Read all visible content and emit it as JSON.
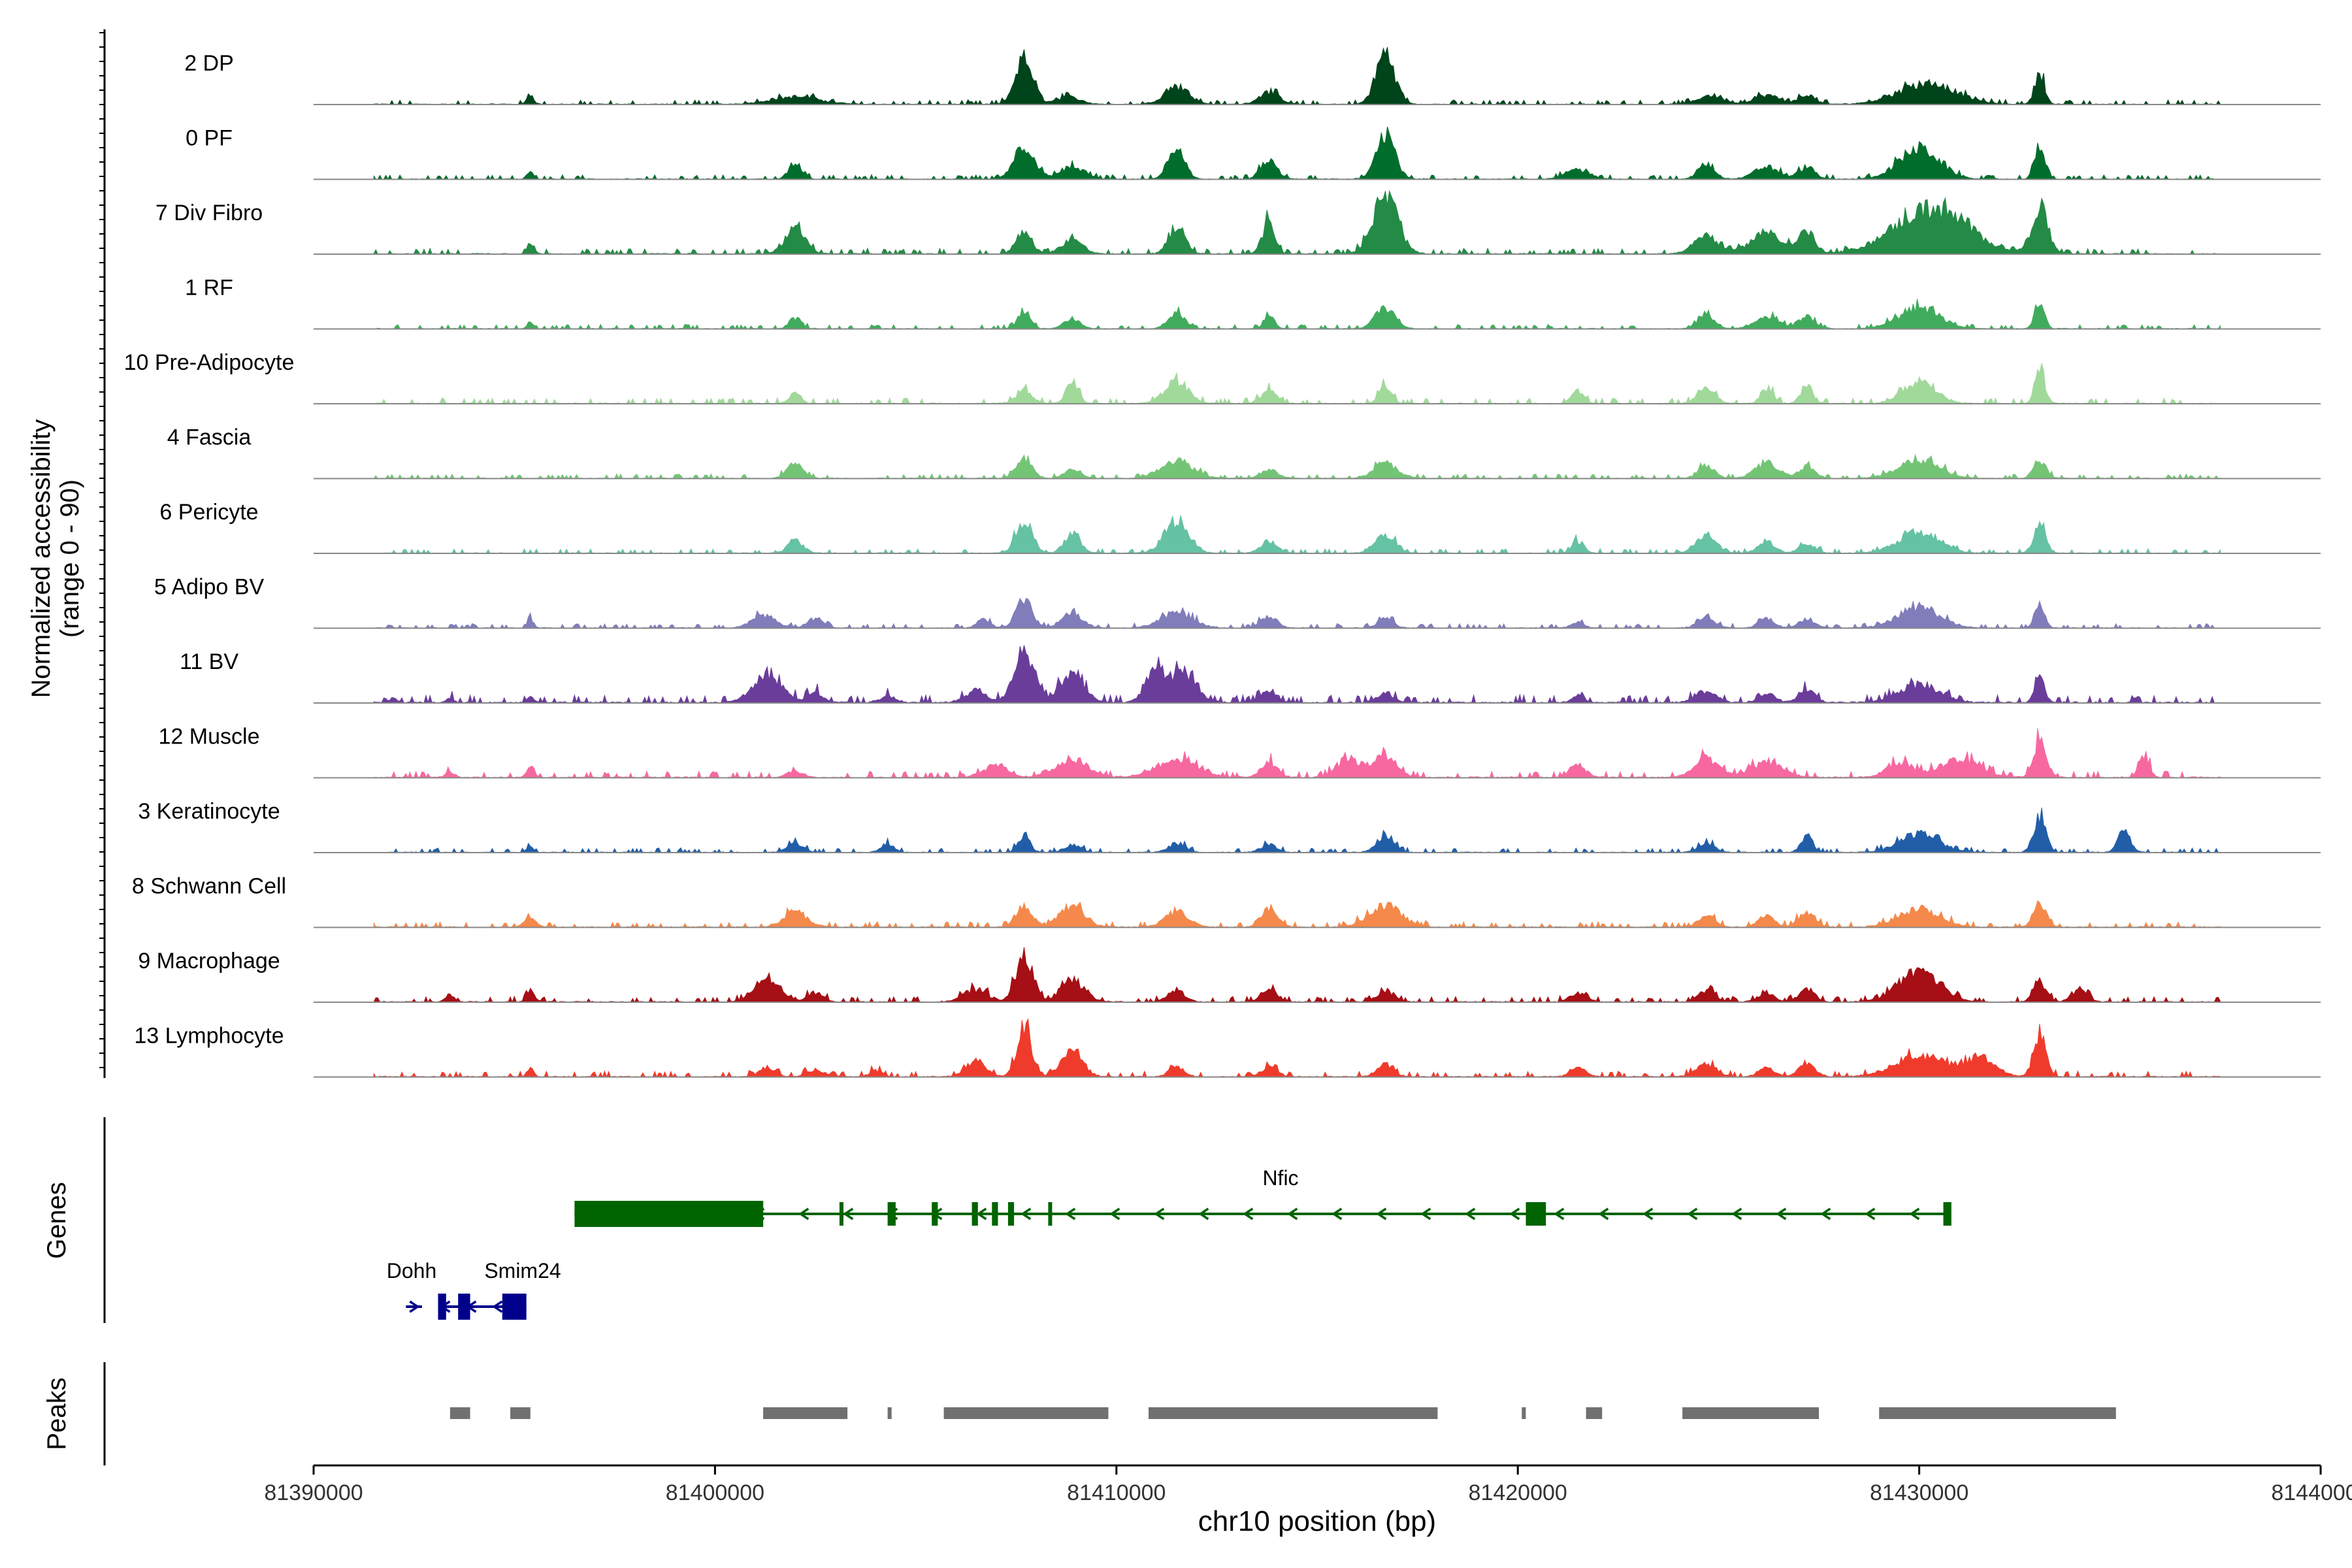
{
  "chart_data": {
    "type": "area",
    "title": "",
    "ylabel_line1": "Normalized accessibility",
    "ylabel_line2": "(range 0 - 90)",
    "xlabel": "chr10 position (bp)",
    "xlim": [
      81390000,
      81440000
    ],
    "xticks": [
      81390000,
      81400000,
      81410000,
      81420000,
      81430000,
      81440000
    ],
    "xtick_labels": [
      "81390000",
      "81400000",
      "81410000",
      "81420000",
      "81430000",
      "81440000"
    ],
    "genes_label": "Genes",
    "peaks_label": "Peaks",
    "tracks": [
      {
        "name": "2 DP",
        "color": "#00441b",
        "noise": 0.04,
        "peaks": [
          [
            81395400,
            0.18,
            80
          ],
          [
            81402000,
            0.12,
            600
          ],
          [
            81407700,
            0.75,
            220
          ],
          [
            81408800,
            0.12,
            300
          ],
          [
            81411500,
            0.3,
            300
          ],
          [
            81413800,
            0.2,
            250
          ],
          [
            81416700,
            0.85,
            230
          ],
          [
            81424800,
            0.15,
            300
          ],
          [
            81426200,
            0.15,
            300
          ],
          [
            81427200,
            0.15,
            200
          ],
          [
            81430200,
            0.35,
            700
          ],
          [
            81433000,
            0.55,
            120
          ]
        ]
      },
      {
        "name": "0 PF",
        "color": "#006d2c",
        "noise": 0.04,
        "peaks": [
          [
            81395400,
            0.15,
            80
          ],
          [
            81402000,
            0.3,
            150
          ],
          [
            81407700,
            0.55,
            250
          ],
          [
            81408900,
            0.2,
            300
          ],
          [
            81411500,
            0.5,
            200
          ],
          [
            81413800,
            0.3,
            200
          ],
          [
            81416700,
            0.8,
            230
          ],
          [
            81421500,
            0.15,
            300
          ],
          [
            81424700,
            0.25,
            200
          ],
          [
            81426200,
            0.2,
            300
          ],
          [
            81427200,
            0.2,
            200
          ],
          [
            81430000,
            0.5,
            500
          ],
          [
            81433000,
            0.6,
            120
          ]
        ]
      },
      {
        "name": "7 Div Fibro",
        "color": "#238b45",
        "noise": 0.05,
        "peaks": [
          [
            81395400,
            0.2,
            80
          ],
          [
            81402000,
            0.45,
            250
          ],
          [
            81407700,
            0.35,
            200
          ],
          [
            81408900,
            0.25,
            250
          ],
          [
            81411500,
            0.45,
            200
          ],
          [
            81413800,
            0.55,
            150
          ],
          [
            81416700,
            1.0,
            300
          ],
          [
            81424700,
            0.3,
            300
          ],
          [
            81426200,
            0.35,
            400
          ],
          [
            81427200,
            0.35,
            200
          ],
          [
            81430300,
            0.75,
            900
          ],
          [
            81433000,
            0.75,
            200
          ]
        ]
      },
      {
        "name": "1 RF",
        "color": "#41ab5d",
        "noise": 0.04,
        "peaks": [
          [
            81395400,
            0.12,
            80
          ],
          [
            81402000,
            0.18,
            150
          ],
          [
            81407700,
            0.3,
            150
          ],
          [
            81408900,
            0.15,
            200
          ],
          [
            81411500,
            0.25,
            200
          ],
          [
            81413800,
            0.25,
            120
          ],
          [
            81416700,
            0.35,
            250
          ],
          [
            81424700,
            0.25,
            200
          ],
          [
            81426200,
            0.2,
            300
          ],
          [
            81427200,
            0.2,
            200
          ],
          [
            81430000,
            0.35,
            500
          ],
          [
            81433000,
            0.45,
            120
          ]
        ]
      },
      {
        "name": "10 Pre-Adipocyte",
        "color": "#a1d99b",
        "noise": 0.05,
        "peaks": [
          [
            81402000,
            0.15,
            150
          ],
          [
            81407700,
            0.2,
            200
          ],
          [
            81408900,
            0.35,
            150
          ],
          [
            81411500,
            0.35,
            300
          ],
          [
            81413800,
            0.2,
            200
          ],
          [
            81416700,
            0.3,
            150
          ],
          [
            81421500,
            0.2,
            150
          ],
          [
            81424700,
            0.3,
            200
          ],
          [
            81426200,
            0.25,
            150
          ],
          [
            81427200,
            0.3,
            150
          ],
          [
            81430000,
            0.35,
            400
          ],
          [
            81433000,
            0.6,
            120
          ]
        ]
      },
      {
        "name": "4 Fascia",
        "color": "#74c476",
        "noise": 0.04,
        "peaks": [
          [
            81402000,
            0.25,
            200
          ],
          [
            81407700,
            0.3,
            200
          ],
          [
            81408900,
            0.15,
            200
          ],
          [
            81411500,
            0.3,
            400
          ],
          [
            81413800,
            0.15,
            200
          ],
          [
            81416700,
            0.25,
            300
          ],
          [
            81424700,
            0.2,
            200
          ],
          [
            81426200,
            0.25,
            300
          ],
          [
            81427200,
            0.2,
            200
          ],
          [
            81430000,
            0.3,
            500
          ],
          [
            81433000,
            0.3,
            150
          ]
        ]
      },
      {
        "name": "6 Pericyte",
        "color": "#66c2a4",
        "noise": 0.04,
        "peaks": [
          [
            81402000,
            0.2,
            200
          ],
          [
            81407700,
            0.55,
            200
          ],
          [
            81408900,
            0.3,
            200
          ],
          [
            81411500,
            0.55,
            300
          ],
          [
            81413800,
            0.2,
            200
          ],
          [
            81416700,
            0.3,
            250
          ],
          [
            81421500,
            0.2,
            150
          ],
          [
            81424700,
            0.3,
            250
          ],
          [
            81426200,
            0.2,
            200
          ],
          [
            81427200,
            0.15,
            200
          ],
          [
            81430000,
            0.35,
            500
          ],
          [
            81433000,
            0.45,
            150
          ]
        ]
      },
      {
        "name": "5 Adipo BV",
        "color": "#807dba",
        "noise": 0.04,
        "peaks": [
          [
            81395400,
            0.15,
            80
          ],
          [
            81401200,
            0.2,
            300
          ],
          [
            81402500,
            0.15,
            200
          ],
          [
            81406700,
            0.15,
            150
          ],
          [
            81407700,
            0.45,
            200
          ],
          [
            81408900,
            0.25,
            250
          ],
          [
            81411500,
            0.25,
            400
          ],
          [
            81413800,
            0.2,
            200
          ],
          [
            81416700,
            0.15,
            200
          ],
          [
            81421500,
            0.1,
            150
          ],
          [
            81424700,
            0.2,
            200
          ],
          [
            81426200,
            0.15,
            200
          ],
          [
            81427200,
            0.15,
            200
          ],
          [
            81430000,
            0.35,
            500
          ],
          [
            81433000,
            0.4,
            120
          ]
        ]
      },
      {
        "name": "11 BV",
        "color": "#6a3d9a",
        "noise": 0.07,
        "peaks": [
          [
            81392000,
            0.08,
            80
          ],
          [
            81393400,
            0.08,
            80
          ],
          [
            81395400,
            0.1,
            80
          ],
          [
            81401300,
            0.5,
            350
          ],
          [
            81402500,
            0.15,
            200
          ],
          [
            81404300,
            0.1,
            200
          ],
          [
            81406500,
            0.2,
            250
          ],
          [
            81407700,
            0.9,
            250
          ],
          [
            81408900,
            0.45,
            300
          ],
          [
            81411000,
            0.55,
            250
          ],
          [
            81411700,
            0.5,
            300
          ],
          [
            81413800,
            0.2,
            200
          ],
          [
            81416700,
            0.15,
            200
          ],
          [
            81421500,
            0.1,
            150
          ],
          [
            81424700,
            0.2,
            250
          ],
          [
            81426200,
            0.15,
            200
          ],
          [
            81427200,
            0.2,
            200
          ],
          [
            81430000,
            0.3,
            500
          ],
          [
            81433000,
            0.4,
            120
          ]
        ]
      },
      {
        "name": "12 Muscle",
        "color": "#f768a1",
        "noise": 0.06,
        "peaks": [
          [
            81393400,
            0.1,
            100
          ],
          [
            81395400,
            0.15,
            100
          ],
          [
            81402000,
            0.1,
            200
          ],
          [
            81407000,
            0.2,
            300
          ],
          [
            81408900,
            0.3,
            400
          ],
          [
            81411500,
            0.3,
            500
          ],
          [
            81413800,
            0.25,
            200
          ],
          [
            81415800,
            0.3,
            300
          ],
          [
            81416700,
            0.35,
            300
          ],
          [
            81421500,
            0.2,
            200
          ],
          [
            81424700,
            0.3,
            300
          ],
          [
            81426200,
            0.25,
            400
          ],
          [
            81429500,
            0.25,
            300
          ],
          [
            81431000,
            0.3,
            500
          ],
          [
            81433000,
            0.65,
            150
          ],
          [
            81435600,
            0.4,
            120
          ]
        ]
      },
      {
        "name": "3 Keratinocyte",
        "color": "#225ea8",
        "noise": 0.04,
        "peaks": [
          [
            81395400,
            0.1,
            80
          ],
          [
            81402000,
            0.15,
            200
          ],
          [
            81404300,
            0.15,
            150
          ],
          [
            81407700,
            0.25,
            150
          ],
          [
            81408900,
            0.12,
            200
          ],
          [
            81411500,
            0.15,
            200
          ],
          [
            81413800,
            0.12,
            200
          ],
          [
            81416700,
            0.3,
            200
          ],
          [
            81424700,
            0.15,
            200
          ],
          [
            81427200,
            0.25,
            150
          ],
          [
            81430000,
            0.3,
            500
          ],
          [
            81433000,
            0.6,
            150
          ],
          [
            81435100,
            0.35,
            150
          ]
        ]
      },
      {
        "name": "8 Schwann Cell",
        "color": "#f4894b",
        "noise": 0.05,
        "peaks": [
          [
            81395400,
            0.15,
            150
          ],
          [
            81402000,
            0.25,
            300
          ],
          [
            81407700,
            0.35,
            200
          ],
          [
            81408900,
            0.35,
            300
          ],
          [
            81411500,
            0.25,
            300
          ],
          [
            81413800,
            0.3,
            200
          ],
          [
            81416700,
            0.35,
            400
          ],
          [
            81424700,
            0.2,
            200
          ],
          [
            81426200,
            0.2,
            200
          ],
          [
            81427200,
            0.25,
            200
          ],
          [
            81430000,
            0.3,
            500
          ],
          [
            81433000,
            0.45,
            150
          ]
        ]
      },
      {
        "name": "9 Macrophage",
        "color": "#a50f15",
        "noise": 0.05,
        "peaks": [
          [
            81393400,
            0.12,
            100
          ],
          [
            81395400,
            0.2,
            100
          ],
          [
            81401300,
            0.4,
            300
          ],
          [
            81402500,
            0.15,
            200
          ],
          [
            81406500,
            0.2,
            300
          ],
          [
            81407700,
            0.8,
            200
          ],
          [
            81408900,
            0.35,
            300
          ],
          [
            81411500,
            0.2,
            200
          ],
          [
            81413800,
            0.2,
            200
          ],
          [
            81416700,
            0.2,
            200
          ],
          [
            81421500,
            0.15,
            200
          ],
          [
            81424700,
            0.2,
            200
          ],
          [
            81426200,
            0.15,
            200
          ],
          [
            81427200,
            0.2,
            200
          ],
          [
            81430000,
            0.55,
            500
          ],
          [
            81433000,
            0.35,
            150
          ],
          [
            81434000,
            0.2,
            200
          ]
        ]
      },
      {
        "name": "13 Lymphocyte",
        "color": "#ef3b2c",
        "noise": 0.05,
        "peaks": [
          [
            81395400,
            0.15,
            80
          ],
          [
            81401300,
            0.15,
            200
          ],
          [
            81402500,
            0.12,
            200
          ],
          [
            81404000,
            0.1,
            150
          ],
          [
            81406500,
            0.25,
            250
          ],
          [
            81407700,
            0.85,
            180
          ],
          [
            81408900,
            0.45,
            250
          ],
          [
            81411500,
            0.15,
            200
          ],
          [
            81413800,
            0.15,
            200
          ],
          [
            81416700,
            0.2,
            200
          ],
          [
            81421500,
            0.15,
            200
          ],
          [
            81424700,
            0.2,
            250
          ],
          [
            81426200,
            0.15,
            200
          ],
          [
            81427200,
            0.2,
            200
          ],
          [
            81430000,
            0.35,
            600
          ],
          [
            81431500,
            0.3,
            400
          ],
          [
            81433000,
            0.75,
            150
          ]
        ]
      }
    ],
    "genes": [
      {
        "name": "Nfic",
        "color": "#006400",
        "strand": "-",
        "start": 81396500,
        "end": 81430700,
        "exons": [
          [
            81396500,
            81401200
          ],
          [
            81403100,
            81403200
          ],
          [
            81404300,
            81404500
          ],
          [
            81405400,
            81405550
          ],
          [
            81406400,
            81406550
          ],
          [
            81406900,
            81407050
          ],
          [
            81407300,
            81407450
          ],
          [
            81408300,
            81408380
          ],
          [
            81420200,
            81420700
          ],
          [
            81430600,
            81430800
          ]
        ]
      },
      {
        "name": "Dohh",
        "color": "#00008b",
        "strand": "+",
        "start": 81392300,
        "end": 81392700,
        "exons": []
      },
      {
        "name": "Smim24",
        "color": "#00008b",
        "strand": "-",
        "start": 81393100,
        "end": 81395300,
        "exons": [
          [
            81393100,
            81393300
          ],
          [
            81393600,
            81393900
          ],
          [
            81394700,
            81395300
          ]
        ]
      }
    ],
    "peaks_regions": [
      [
        81393400,
        81393900
      ],
      [
        81394900,
        81395400
      ],
      [
        81401200,
        81403300
      ],
      [
        81404300,
        81404400
      ],
      [
        81405700,
        81409800
      ],
      [
        81410800,
        81418000
      ],
      [
        81420100,
        81420200
      ],
      [
        81421700,
        81422100
      ],
      [
        81424100,
        81427500
      ],
      [
        81429000,
        81434900
      ]
    ]
  }
}
